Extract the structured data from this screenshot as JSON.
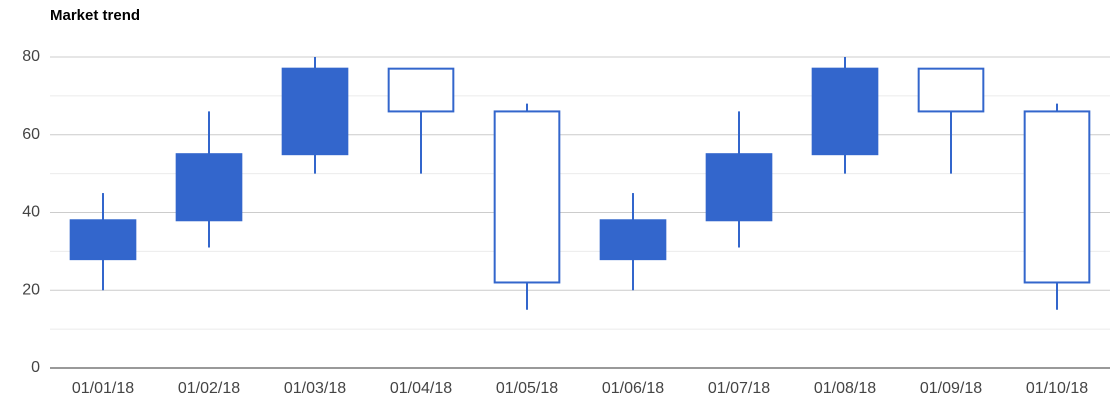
{
  "chart_data": {
    "type": "candlestick",
    "title": "Market trend",
    "categories": [
      "01/01/18",
      "01/02/18",
      "01/03/18",
      "01/04/18",
      "01/05/18",
      "01/06/18",
      "01/07/18",
      "01/08/18",
      "01/09/18",
      "01/10/18"
    ],
    "low": [
      20,
      31,
      50,
      50,
      15,
      20,
      31,
      50,
      50,
      15
    ],
    "open": [
      28,
      38,
      55,
      77,
      66,
      28,
      38,
      55,
      77,
      66
    ],
    "close": [
      38,
      55,
      77,
      66,
      22,
      38,
      55,
      77,
      66,
      22
    ],
    "high": [
      45,
      66,
      80,
      77,
      68,
      45,
      66,
      80,
      77,
      68
    ],
    "color": "#3366cc",
    "rising_fill": "#3366cc",
    "falling_fill": "#ffffff",
    "ylim": [
      0,
      80
    ],
    "yticks": [
      0,
      20,
      40,
      60,
      80
    ],
    "minor_yticks": [
      10,
      30,
      50,
      70
    ],
    "grid": true
  }
}
